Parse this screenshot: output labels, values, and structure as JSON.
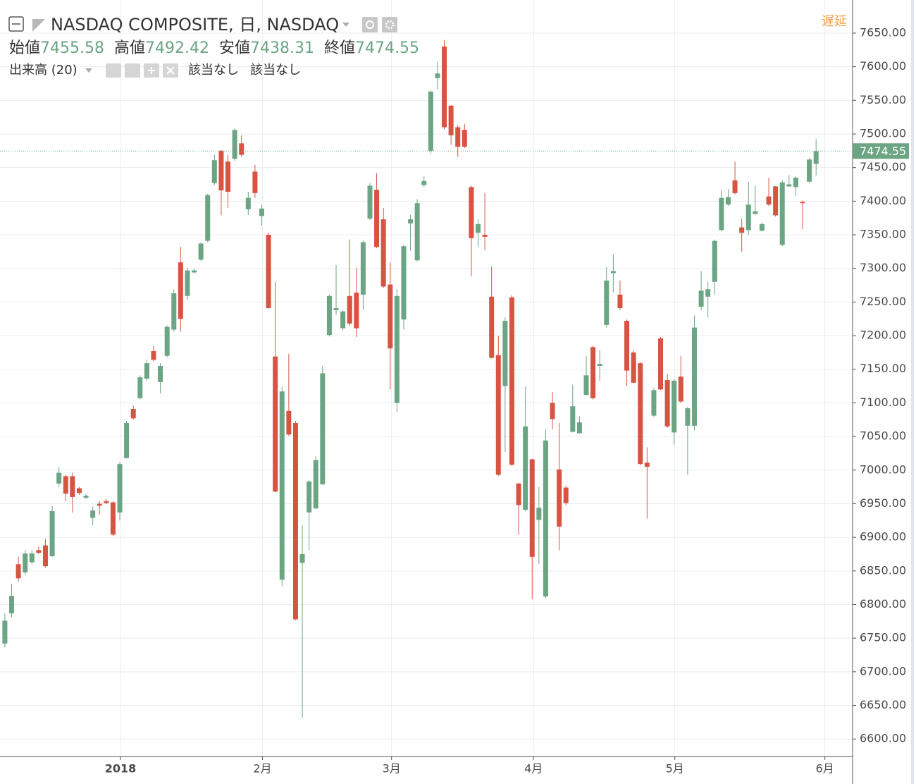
{
  "chart_data": {
    "type": "candlestick",
    "title": "NASDAQ COMPOSITE, 日, NASDAQ",
    "ohlc_labels": [
      "始値",
      "高値",
      "安値",
      "終値"
    ],
    "indicator": "出来高 (20)",
    "indicator_values": [
      "該当なし",
      "該当なし"
    ],
    "status": "遅延",
    "up_color": "#6ba583",
    "down_color": "#d75442",
    "grid": true,
    "open": [
      6742,
      6787,
      6860,
      6848,
      6863,
      6881,
      6888,
      6872,
      6980,
      6991,
      6991,
      6973,
      6959,
      6929,
      6950,
      6954,
      6952,
      6937,
      7018,
      7091,
      7107,
      7136,
      7177,
      7131,
      7170,
      7209,
      7309,
      7259,
      7294,
      7313,
      7341,
      7427,
      7475,
      7459,
      7463,
      7486,
      7388,
      7444,
      7378,
      7350,
      7169,
      6837,
      7088,
      7070,
      6862,
      6937,
      6943,
      6979,
      7201,
      7238,
      7211,
      7259,
      7264,
      7261,
      7374,
      7417,
      7373,
      7276,
      7100,
      7224,
      7367,
      7312,
      7424,
      7475,
      7583,
      7630,
      7542,
      7510,
      7506,
      7421,
      7353,
      7350,
      7258,
      7171,
      7125,
      7257,
      6980,
      6941,
      7016,
      6926,
      6812,
      7100,
      7001,
      6974,
      7057,
      7055,
      7112,
      7183,
      7155,
      7216,
      7293,
      7261,
      7222,
      7175,
      7159,
      7011,
      7081,
      7196,
      7134,
      7056,
      7139,
      7066,
      7066,
      7243,
      7258,
      7280,
      7357,
      7395,
      7431,
      7361,
      7357,
      7381,
      7356,
      7407,
      7422,
      7335,
      7422,
      7421,
      7399,
      7429,
      7455.58
    ],
    "high": [
      6787,
      6831,
      6871,
      6881,
      6881,
      6886,
      6897,
      6947,
      7005,
      6993,
      6996,
      6975,
      6965,
      6946,
      6954,
      6957,
      6954,
      7012,
      7073,
      7096,
      7141,
      7164,
      7185,
      7159,
      7215,
      7269,
      7332,
      7301,
      7300,
      7339,
      7411,
      7469,
      7476,
      7469,
      7508,
      7498,
      7414,
      7454,
      7395,
      7353,
      7280,
      7124,
      7173,
      7073,
      6918,
      6985,
      7021,
      7155,
      7261,
      7305,
      7238,
      7343,
      7301,
      7342,
      7427,
      7442,
      7390,
      7309,
      7269,
      7335,
      7380,
      7403,
      7437,
      7565,
      7607,
      7640,
      7543,
      7513,
      7515,
      7423,
      7373,
      7412,
      7303,
      7200,
      7227,
      7260,
      6981,
      7124,
      7017,
      6975,
      7061,
      7116,
      7070,
      6977,
      7127,
      7080,
      7170,
      7185,
      7178,
      7302,
      7321,
      7282,
      7224,
      7178,
      7161,
      7034,
      7122,
      7198,
      7143,
      7135,
      7170,
      7094,
      7230,
      7296,
      7280,
      7343,
      7416,
      7418,
      7459,
      7374,
      7429,
      7423,
      7368,
      7435,
      7423,
      7431,
      7439,
      7437,
      7401,
      7464,
      7492.42
    ],
    "low": [
      6736,
      6781,
      6834,
      6844,
      6860,
      6875,
      6855,
      6871,
      6975,
      6954,
      6937,
      6963,
      6957,
      6918,
      6934,
      6949,
      6902,
      6925,
      7017,
      7075,
      7105,
      7133,
      7162,
      7114,
      7168,
      7206,
      7206,
      7253,
      7292,
      7311,
      7339,
      7424,
      7379,
      7390,
      7460,
      7466,
      7379,
      7405,
      7364,
      7240,
      6967,
      6827,
      7051,
      6777,
      6631,
      6881,
      6942,
      6978,
      7199,
      7231,
      7208,
      7215,
      7198,
      7238,
      7372,
      7330,
      7271,
      7120,
      7086,
      7209,
      7326,
      7311,
      7421,
      7471,
      7567,
      7507,
      7484,
      7466,
      7479,
      7288,
      7332,
      7327,
      7166,
      6991,
      7027,
      7006,
      6904,
      6939,
      6808,
      6860,
      6810,
      7061,
      6881,
      6948,
      7056,
      7054,
      7111,
      7105,
      7133,
      7212,
      7264,
      7238,
      7125,
      7129,
      7007,
      6928,
      7079,
      7119,
      7063,
      7038,
      7100,
      6993,
      7059,
      7238,
      7227,
      7261,
      7355,
      7393,
      7410,
      7325,
      7350,
      7380,
      7355,
      7393,
      7377,
      7333,
      7421,
      7408,
      7358,
      7427,
      7438.31
    ],
    "close": [
      6776,
      6813,
      6839,
      6876,
      6876,
      6877,
      6857,
      6939,
      6996,
      6965,
      6960,
      6966,
      6962,
      6940,
      6947,
      6951,
      6904,
      7009,
      7070,
      7077,
      7138,
      7159,
      7164,
      7155,
      7213,
      7263,
      7225,
      7297,
      7297,
      7337,
      7409,
      7461,
      7416,
      7414,
      7506,
      7469,
      7405,
      7412,
      7389,
      7241,
      6968,
      7117,
      7053,
      6778,
      6875,
      6983,
      7015,
      7144,
      7259,
      7241,
      7236,
      7218,
      7211,
      7339,
      7423,
      7332,
      7273,
      7181,
      7259,
      7333,
      7373,
      7397,
      7430,
      7563,
      7590,
      7510,
      7498,
      7481,
      7481,
      7345,
      7366,
      7347,
      7167,
      6993,
      7222,
      7008,
      6948,
      7065,
      6871,
      6944,
      7044,
      7076,
      6916,
      6951,
      7095,
      7071,
      7141,
      7107,
      7158,
      7282,
      7296,
      7241,
      7148,
      7130,
      7009,
      7005,
      7119,
      7120,
      7065,
      7133,
      7102,
      7092,
      7212,
      7267,
      7269,
      7341,
      7405,
      7406,
      7412,
      7353,
      7395,
      7385,
      7366,
      7395,
      7379,
      7428,
      7425,
      7435,
      7397,
      7462,
      7474.55
    ],
    "xlim": [
      -0.2,
      125.4
    ],
    "xticks": [
      {
        "value": 17.1,
        "label": "2018"
      },
      {
        "value": 38.1,
        "label": "2月"
      },
      {
        "value": 57.2,
        "label": "3月"
      },
      {
        "value": 78.2,
        "label": "4月"
      },
      {
        "value": 99.1,
        "label": "5月"
      },
      {
        "value": 121.3,
        "label": "6月"
      }
    ],
    "ylim": [
      6574,
      7694
    ],
    "yticks": [
      {
        "value": 6600,
        "label": "6600.00"
      },
      {
        "value": 6650,
        "label": "6650.00"
      },
      {
        "value": 6700,
        "label": "6700.00"
      },
      {
        "value": 6750,
        "label": "6750.00"
      },
      {
        "value": 6800,
        "label": "6800.00"
      },
      {
        "value": 6850,
        "label": "6850.00"
      },
      {
        "value": 6900,
        "label": "6900.00"
      },
      {
        "value": 6950,
        "label": "6950.00"
      },
      {
        "value": 7000,
        "label": "7000.00"
      },
      {
        "value": 7050,
        "label": "7050.00"
      },
      {
        "value": 7100,
        "label": "7100.00"
      },
      {
        "value": 7150,
        "label": "7150.00"
      },
      {
        "value": 7200,
        "label": "7200.00"
      },
      {
        "value": 7250,
        "label": "7250.00"
      },
      {
        "value": 7300,
        "label": "7300.00"
      },
      {
        "value": 7350,
        "label": "7350.00"
      },
      {
        "value": 7400,
        "label": "7400.00"
      },
      {
        "value": 7450,
        "label": "7450.00"
      },
      {
        "value": 7500,
        "label": "7500.00"
      },
      {
        "value": 7550,
        "label": "7550.00"
      },
      {
        "value": 7600,
        "label": "7600.00"
      },
      {
        "value": 7650,
        "label": "7650.00"
      }
    ]
  }
}
